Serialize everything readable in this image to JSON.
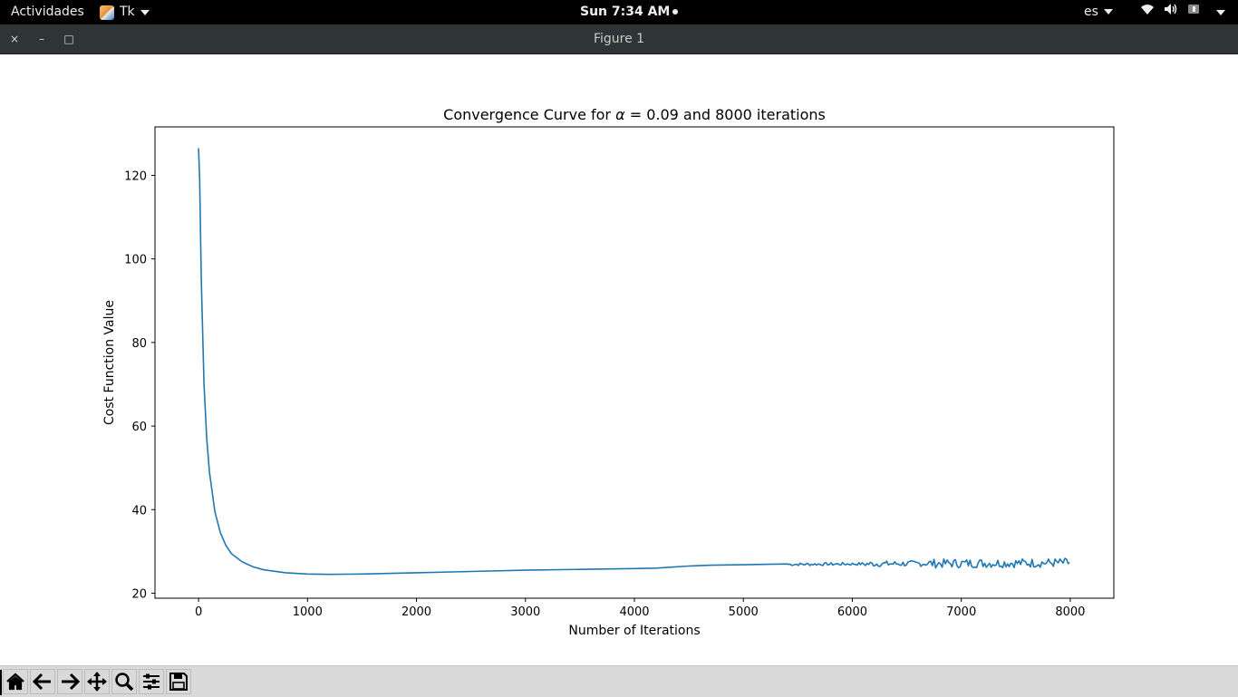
{
  "topbar": {
    "activities": "Actividades",
    "app_name": "Tk",
    "clock": "Sun  7:34 AM",
    "keyboard_layout": "es"
  },
  "window": {
    "title": "Figure 1",
    "close_glyph": "×",
    "minimize_glyph": "–",
    "maximize_glyph": "□"
  },
  "toolbar": {
    "icons": [
      "home-icon",
      "back-arrow-icon",
      "forward-arrow-icon",
      "pan-icon",
      "zoom-icon",
      "subplots-config-icon",
      "save-icon"
    ]
  },
  "chart_data": {
    "type": "line",
    "title_prefix": "Convergence Curve for ",
    "title_alpha": "α",
    "title_suffix": " = 0.09 and 8000 iterations",
    "xlabel": "Number of Iterations",
    "ylabel": "Cost Function Value",
    "xlim": [
      -400,
      8400
    ],
    "ylim": [
      18.8,
      131.6
    ],
    "xticks": [
      0,
      1000,
      2000,
      3000,
      4000,
      5000,
      6000,
      7000,
      8000
    ],
    "xtick_labels": [
      "0",
      "1000",
      "2000",
      "3000",
      "4000",
      "5000",
      "6000",
      "7000",
      "8000"
    ],
    "yticks": [
      20,
      40,
      60,
      80,
      100,
      120
    ],
    "ytick_labels": [
      "20",
      "40",
      "60",
      "80",
      "100",
      "120"
    ],
    "grid": false,
    "line_color": "#1f77b4",
    "series": [
      {
        "x": [
          0,
          10,
          25,
          50,
          75,
          100,
          150,
          200,
          250,
          300,
          400,
          500,
          600,
          800,
          1000,
          1200,
          1500,
          2000,
          2500,
          3000,
          3500,
          4000,
          4200,
          4500,
          4700,
          5000,
          5400
        ],
        "y": [
          126.5,
          119,
          95,
          70,
          57,
          49,
          39.5,
          34.5,
          31.5,
          29.5,
          27.5,
          26.3,
          25.6,
          24.9,
          24.6,
          24.5,
          24.6,
          24.9,
          25.2,
          25.5,
          25.7,
          25.9,
          26.0,
          26.5,
          26.7,
          26.8,
          27.0
        ]
      }
    ]
  }
}
